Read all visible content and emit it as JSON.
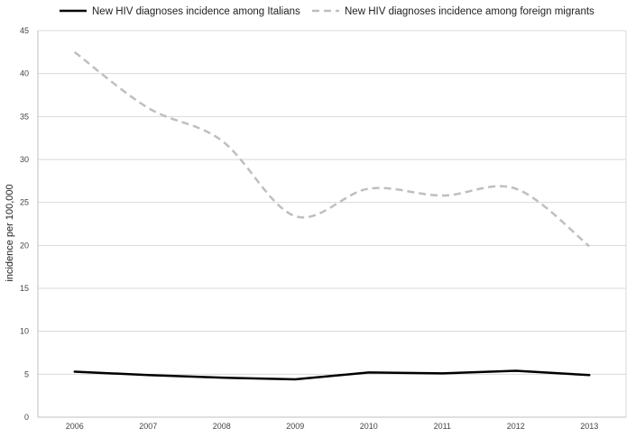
{
  "chart_data": {
    "type": "line",
    "title": "",
    "xlabel": "",
    "ylabel": "incidence per 100,000",
    "categories": [
      "2006",
      "2007",
      "2008",
      "2009",
      "2010",
      "2011",
      "2012",
      "2013"
    ],
    "ylim": [
      0,
      45
    ],
    "yticks": [
      0,
      5,
      10,
      15,
      20,
      25,
      30,
      35,
      40,
      45
    ],
    "grid": true,
    "legend_position": "top",
    "series": [
      {
        "name": "New HIV diagnoses incidence among Italians",
        "values": [
          5.3,
          4.9,
          4.6,
          4.4,
          5.2,
          5.1,
          5.4,
          4.9
        ],
        "color": "#000000",
        "style": "solid"
      },
      {
        "name": "New HIV diagnoses incidence among foreign migrants",
        "values": [
          42.5,
          36.0,
          32.2,
          23.4,
          26.6,
          25.8,
          26.6,
          19.9
        ],
        "color": "#bfbfbf",
        "style": "dashed"
      }
    ]
  }
}
